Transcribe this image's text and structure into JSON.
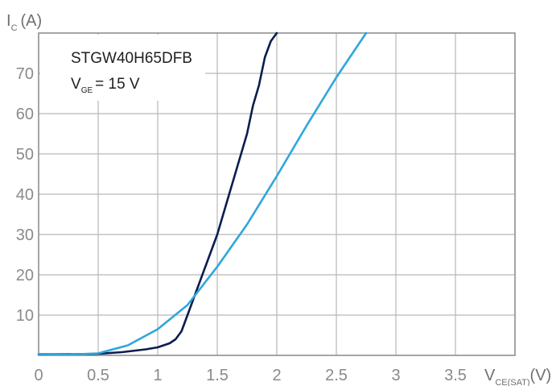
{
  "chart_data": {
    "type": "line",
    "annotation": {
      "device": "STGW40H65DFB",
      "condition_main": "V",
      "condition_sub": "GE",
      "condition_value": "= 15 V"
    },
    "ylabel": {
      "main": "I",
      "sub": "C",
      "unit": "(A)"
    },
    "xlabel": {
      "main": "V",
      "sub": "CE(SAT)",
      "unit": "(V)"
    },
    "x_ticks": [
      "0",
      "0.5",
      "1",
      "1.5",
      "2",
      "2.5",
      "3",
      "3.5"
    ],
    "y_ticks": [
      "10",
      "20",
      "30",
      "40",
      "50",
      "60",
      "70"
    ],
    "xlim": [
      0,
      4
    ],
    "ylim": [
      0,
      80
    ],
    "grid": true,
    "series": [
      {
        "color": "#0b1d4f",
        "points": [
          [
            0,
            0.3
          ],
          [
            0.3,
            0.3
          ],
          [
            0.5,
            0.4
          ],
          [
            0.7,
            0.8
          ],
          [
            0.9,
            1.5
          ],
          [
            1.0,
            2.0
          ],
          [
            1.1,
            3.0
          ],
          [
            1.15,
            4.0
          ],
          [
            1.2,
            6.0
          ],
          [
            1.25,
            10.0
          ],
          [
            1.3,
            14.0
          ],
          [
            1.35,
            18.0
          ],
          [
            1.4,
            22.0
          ],
          [
            1.45,
            26.0
          ],
          [
            1.5,
            30.0
          ],
          [
            1.55,
            35.0
          ],
          [
            1.6,
            40.0
          ],
          [
            1.65,
            45.0
          ],
          [
            1.7,
            50.0
          ],
          [
            1.75,
            55.0
          ],
          [
            1.8,
            62.0
          ],
          [
            1.85,
            67.0
          ],
          [
            1.9,
            74.0
          ],
          [
            1.95,
            78.0
          ],
          [
            2.0,
            80.0
          ]
        ]
      },
      {
        "color": "#2ea6dc",
        "points": [
          [
            0,
            0.3
          ],
          [
            0.25,
            0.2
          ],
          [
            0.5,
            0.5
          ],
          [
            0.75,
            2.5
          ],
          [
            1.0,
            6.5
          ],
          [
            1.25,
            12.5
          ],
          [
            1.5,
            22.0
          ],
          [
            1.75,
            32.5
          ],
          [
            2.0,
            44.5
          ],
          [
            2.25,
            57.0
          ],
          [
            2.5,
            69.0
          ],
          [
            2.75,
            80.0
          ]
        ]
      }
    ]
  }
}
